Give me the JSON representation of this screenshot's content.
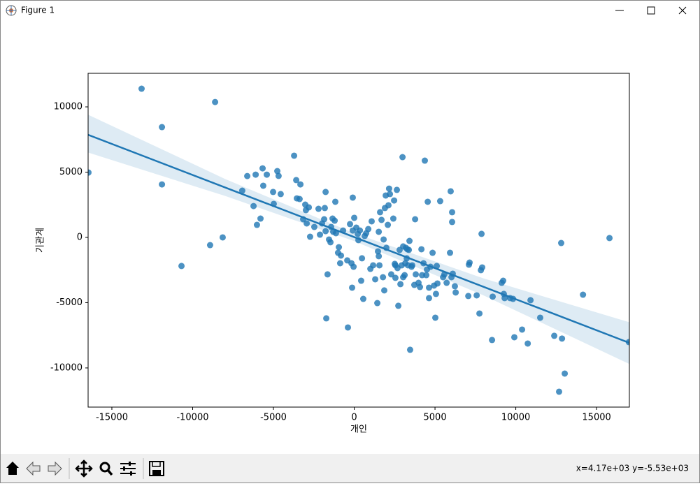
{
  "window": {
    "title": "Figure 1"
  },
  "status": "x=4.17e+03 y=-5.53e+03",
  "chart_data": {
    "type": "scatter",
    "xlabel": "개인",
    "ylabel": "기관계",
    "color": "#1f77b4",
    "xlim": [
      -16470,
      17030
    ],
    "ylim": [
      -13000,
      12570
    ],
    "xticks": [
      -15000,
      -10000,
      -5000,
      0,
      5000,
      10000,
      15000
    ],
    "yticks": [
      -10000,
      -5000,
      0,
      5000,
      10000
    ],
    "grid": false,
    "x": [
      -16450,
      -13160,
      -11900,
      -11900,
      -10690,
      -8920,
      -8610,
      -8140,
      -6930,
      -6620,
      -6230,
      -6100,
      -6020,
      -5800,
      -5670,
      -5630,
      -5410,
      -5020,
      -4980,
      -4760,
      -4680,
      -4550,
      -3720,
      -3590,
      -3550,
      -3330,
      -3380,
      -3160,
      -3030,
      -2990,
      -2940,
      -2810,
      -2730,
      -2470,
      -2210,
      -2120,
      -1990,
      -1860,
      -1770,
      -1820,
      -1770,
      -1730,
      -1650,
      -1560,
      -1470,
      -1430,
      -1340,
      -1300,
      -1210,
      -1170,
      -1130,
      -1000,
      -950,
      -870,
      -820,
      -690,
      -430,
      -390,
      -260,
      -170,
      -130,
      -90,
      -90,
      -40,
      0,
      130,
      220,
      260,
      350,
      430,
      480,
      560,
      650,
      740,
      870,
      1000,
      1080,
      1170,
      1300,
      1430,
      1470,
      1520,
      1520,
      1560,
      1600,
      1690,
      1780,
      1820,
      1860,
      1900,
      1950,
      1990,
      2080,
      2120,
      2160,
      2210,
      2290,
      2420,
      2470,
      2510,
      2550,
      2550,
      2640,
      2680,
      2730,
      2810,
      2860,
      2940,
      2990,
      3030,
      3030,
      3120,
      3160,
      3200,
      3250,
      3290,
      3330,
      3380,
      3420,
      3460,
      3550,
      3590,
      3720,
      3770,
      3810,
      3980,
      4070,
      4160,
      4200,
      4290,
      4370,
      4460,
      4500,
      4550,
      4630,
      4630,
      4720,
      4850,
      4940,
      5020,
      5060,
      5110,
      5150,
      5320,
      5500,
      5580,
      5720,
      5930,
      5970,
      6020,
      6060,
      6060,
      6100,
      6230,
      6280,
      7060,
      7100,
      7140,
      7580,
      7750,
      7840,
      7880,
      7920,
      8530,
      8570,
      9130,
      9220,
      9260,
      9310,
      9650,
      9910,
      9830,
      10390,
      10740,
      10910,
      11510,
      12380,
      12680,
      12860,
      12810,
      13030,
      14160,
      15800,
      17000
    ],
    "values": [
      4970,
      11390,
      8450,
      4060,
      -2190,
      -590,
      10370,
      0,
      3580,
      4700,
      2400,
      4810,
      960,
      1440,
      5290,
      3960,
      4810,
      3480,
      2570,
      5080,
      4710,
      3320,
      6260,
      4390,
      2990,
      4060,
      2940,
      1390,
      2510,
      2090,
      1070,
      2300,
      50,
      800,
      2190,
      210,
      1070,
      1390,
      3480,
      2250,
      480,
      -6200,
      -2830,
      -160,
      -370,
      800,
      1440,
      430,
      1280,
      2730,
      320,
      -1180,
      -750,
      -1980,
      -1390,
      530,
      -1760,
      -6900,
      1020,
      -1980,
      -3850,
      530,
      3050,
      -2250,
      1500,
      750,
      270,
      -210,
      530,
      -3320,
      -1600,
      -4710,
      110,
      320,
      640,
      -2410,
      1230,
      -2140,
      -3210,
      -5030,
      -1070,
      -1440,
      430,
      -2140,
      1930,
      1340,
      -3050,
      -160,
      -4060,
      2250,
      3210,
      -800,
      960,
      2460,
      3740,
      3320,
      -2830,
      1440,
      2830,
      -2030,
      -2140,
      -3100,
      3640,
      -2350,
      -5240,
      -960,
      -3580,
      -2140,
      6150,
      -3050,
      -690,
      -2890,
      -1980,
      -800,
      -1600,
      -910,
      -2140,
      -960,
      -270,
      -8610,
      -2250,
      -2140,
      -3640,
      1390,
      -2830,
      -3480,
      -3800,
      -910,
      -2890,
      -1980,
      5880,
      -2890,
      -2460,
      2730,
      -3850,
      -4650,
      -2250,
      -1180,
      -3690,
      -6150,
      -4330,
      -2190,
      -3530,
      2780,
      -3050,
      -2830,
      -3480,
      -1180,
      3530,
      -3050,
      1180,
      1930,
      -2780,
      -3740,
      -4220,
      -4490,
      -2090,
      -1930,
      -4440,
      -5830,
      -2510,
      270,
      -2300,
      -7860,
      -4540,
      -3480,
      -3320,
      -4330,
      -4650,
      -4650,
      -7650,
      -4710,
      -7060,
      -8130,
      -4810,
      -6150,
      -7540,
      -11820,
      -7750,
      -430,
      -10430,
      -4390,
      -50,
      -8020
    ],
    "regression_line": {
      "x": [
        -16470,
        17030
      ],
      "values": [
        7860,
        -8080
      ]
    },
    "confidence_band": {
      "x": [
        -16470,
        -8000,
        0,
        8000,
        17030
      ],
      "upper": [
        9400,
        4480,
        320,
        -3140,
        -6500
      ],
      "lower": [
        6500,
        3180,
        -280,
        -4440,
        -9700
      ]
    }
  }
}
